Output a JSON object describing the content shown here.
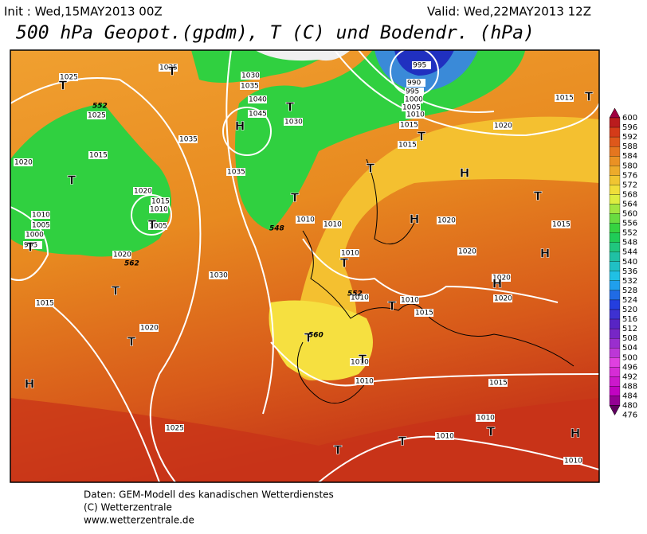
{
  "header": {
    "init": "Init : Wed,15MAY2013 00Z",
    "valid": "Valid: Wed,22MAY2013 12Z",
    "title": "500 hPa Geopot.(gpdm), T (C) und Bodendr. (hPa)"
  },
  "map": {
    "isobar_labels": [
      "1025",
      "1035",
      "1030",
      "1035",
      "1040",
      "1045",
      "1030",
      "1035",
      "1035",
      "1025",
      "1015",
      "1020",
      "1015",
      "1010",
      "1005",
      "1020",
      "1010",
      "1005",
      "1000",
      "995",
      "1015",
      "1030",
      "1020",
      "1025",
      "995",
      "990",
      "995",
      "1000",
      "1005",
      "1010",
      "1015",
      "1015",
      "1015",
      "1020",
      "1010",
      "1010",
      "1010",
      "1010",
      "1010",
      "1015",
      "1020",
      "1020",
      "1020",
      "1020",
      "1010",
      "1010",
      "1015",
      "1010",
      "1010",
      "1010",
      "1015",
      "1020"
    ],
    "pressure_centers": [
      "H",
      "H",
      "H",
      "H",
      "H",
      "H",
      "H",
      "T",
      "T",
      "T",
      "T",
      "T",
      "T",
      "T",
      "T",
      "T",
      "T",
      "T",
      "T",
      "T",
      "T",
      "T",
      "T",
      "T",
      "T",
      "T",
      "T"
    ],
    "geopotential_labels": [
      "552",
      "548",
      "562",
      "552",
      "560"
    ]
  },
  "colorbar": {
    "ticks": [
      600,
      596,
      592,
      588,
      584,
      580,
      576,
      572,
      568,
      564,
      560,
      556,
      552,
      548,
      544,
      540,
      536,
      532,
      528,
      524,
      520,
      516,
      512,
      508,
      504,
      500,
      496,
      492,
      488,
      484,
      480,
      476
    ]
  },
  "footer": [
    "Daten: GEM-Modell des kanadischen Wetterdienstes",
    "(C) Wetterzentrale",
    "www.wetterzentrale.de"
  ]
}
